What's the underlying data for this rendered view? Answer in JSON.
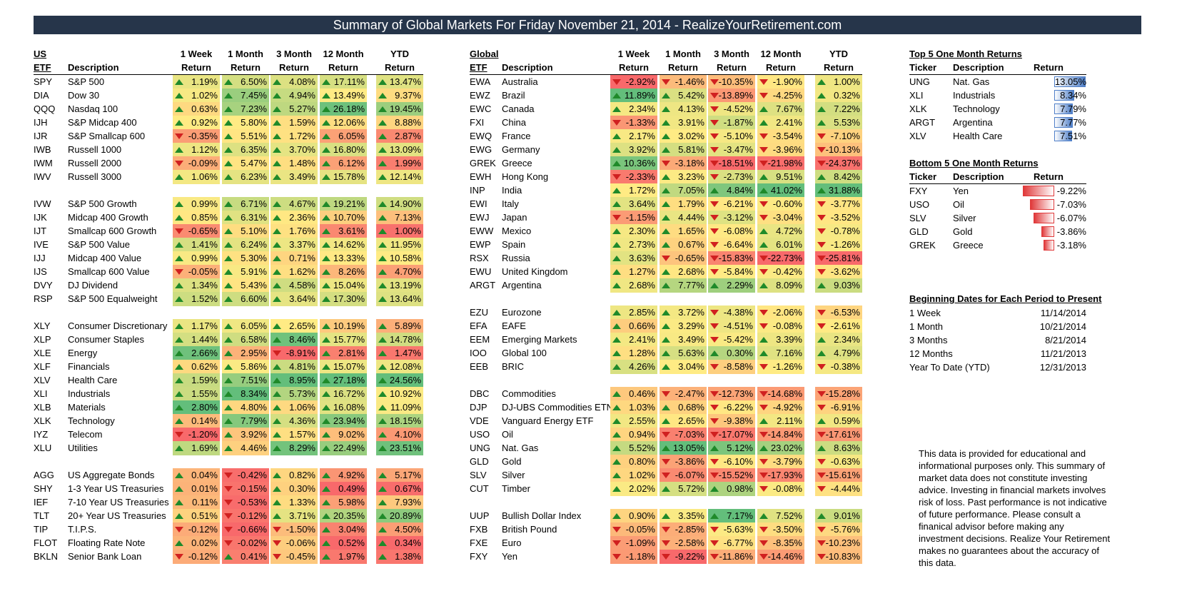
{
  "title": "Summary of Global Markets For Friday November 21, 2014 - RealizeYourRetirement.com",
  "us": {
    "group_label": "US",
    "col_etf": "ETF",
    "col_desc": "Description",
    "periods": [
      "1 Week",
      "1 Month",
      "3 Month",
      "12 Month",
      "YTD"
    ],
    "return_label": "Return",
    "rows": [
      {
        "t": "SPY",
        "d": "S&P 500",
        "v": [
          1.19,
          6.5,
          4.08,
          17.11,
          13.47
        ]
      },
      {
        "t": "DIA",
        "d": "Dow 30",
        "v": [
          1.02,
          7.45,
          4.94,
          13.49,
          9.37
        ]
      },
      {
        "t": "QQQ",
        "d": "Nasdaq 100",
        "v": [
          0.63,
          7.23,
          5.27,
          26.18,
          19.45
        ]
      },
      {
        "t": "IJH",
        "d": "S&P Midcap 400",
        "v": [
          0.92,
          5.8,
          1.59,
          12.06,
          8.88
        ]
      },
      {
        "t": "IJR",
        "d": "S&P Smallcap 600",
        "v": [
          -0.35,
          5.51,
          1.72,
          6.05,
          2.87
        ]
      },
      {
        "t": "IWB",
        "d": "Russell 1000",
        "v": [
          1.12,
          6.35,
          3.7,
          16.8,
          13.09
        ]
      },
      {
        "t": "IWM",
        "d": "Russell 2000",
        "v": [
          -0.09,
          5.47,
          1.48,
          6.12,
          1.99
        ]
      },
      {
        "t": "IWV",
        "d": "Russell 3000",
        "v": [
          1.06,
          6.23,
          3.49,
          15.78,
          12.14
        ]
      },
      null,
      {
        "t": "IVW",
        "d": "S&P 500 Growth",
        "v": [
          0.99,
          6.71,
          4.67,
          19.21,
          14.9
        ]
      },
      {
        "t": "IJK",
        "d": "Midcap 400 Growth",
        "v": [
          0.85,
          6.31,
          2.36,
          10.7,
          7.13
        ]
      },
      {
        "t": "IJT",
        "d": "Smallcap 600 Growth",
        "v": [
          -0.65,
          5.1,
          1.76,
          3.61,
          1.0
        ]
      },
      {
        "t": "IVE",
        "d": "S&P 500 Value",
        "v": [
          1.41,
          6.24,
          3.37,
          14.62,
          11.95
        ]
      },
      {
        "t": "IJJ",
        "d": "Midcap 400 Value",
        "v": [
          0.99,
          5.3,
          0.71,
          13.33,
          10.58
        ]
      },
      {
        "t": "IJS",
        "d": "Smallcap 600 Value",
        "v": [
          -0.05,
          5.91,
          1.62,
          8.26,
          4.7
        ]
      },
      {
        "t": "DVY",
        "d": "DJ Dividend",
        "v": [
          1.34,
          5.43,
          4.58,
          15.04,
          13.19
        ]
      },
      {
        "t": "RSP",
        "d": "S&P 500 Equalweight",
        "v": [
          1.52,
          6.6,
          3.64,
          17.3,
          13.64
        ]
      },
      null,
      {
        "t": "XLY",
        "d": "Consumer Discretionary",
        "v": [
          1.17,
          6.05,
          2.65,
          10.19,
          5.89
        ]
      },
      {
        "t": "XLP",
        "d": "Consumer Staples",
        "v": [
          1.44,
          6.58,
          8.46,
          15.77,
          14.78
        ]
      },
      {
        "t": "XLE",
        "d": "Energy",
        "v": [
          2.66,
          2.95,
          -8.91,
          2.81,
          1.47
        ]
      },
      {
        "t": "XLF",
        "d": "Financials",
        "v": [
          0.62,
          5.86,
          4.81,
          15.07,
          12.08
        ]
      },
      {
        "t": "XLV",
        "d": "Health Care",
        "v": [
          1.59,
          7.51,
          8.95,
          27.18,
          24.56
        ]
      },
      {
        "t": "XLI",
        "d": "Industrials",
        "v": [
          1.55,
          8.34,
          5.73,
          16.72,
          10.92
        ]
      },
      {
        "t": "XLB",
        "d": "Materials",
        "v": [
          2.8,
          4.8,
          1.06,
          16.08,
          11.09
        ]
      },
      {
        "t": "XLK",
        "d": "Technology",
        "v": [
          0.14,
          7.79,
          4.36,
          23.94,
          18.15
        ]
      },
      {
        "t": "IYZ",
        "d": "Telecom",
        "v": [
          -1.2,
          3.92,
          1.57,
          9.02,
          4.1
        ]
      },
      {
        "t": "XLU",
        "d": "Utilities",
        "v": [
          1.69,
          4.46,
          8.29,
          22.49,
          23.51
        ]
      },
      null,
      {
        "t": "AGG",
        "d": "US Aggregate Bonds",
        "v": [
          0.04,
          -0.42,
          0.82,
          4.92,
          5.17
        ]
      },
      {
        "t": "SHY",
        "d": "1-3 Year US Treasuries",
        "v": [
          0.01,
          -0.15,
          0.3,
          0.49,
          0.67
        ]
      },
      {
        "t": "IEF",
        "d": "7-10 Year US Treasuries",
        "v": [
          0.11,
          -0.53,
          1.33,
          5.98,
          7.93
        ]
      },
      {
        "t": "TLT",
        "d": "20+ Year US Treasuries",
        "v": [
          0.51,
          -0.12,
          3.71,
          20.35,
          20.89
        ]
      },
      {
        "t": "TIP",
        "d": "T.I.P.S.",
        "v": [
          -0.12,
          -0.66,
          -1.5,
          3.04,
          4.5
        ]
      },
      {
        "t": "FLOT",
        "d": "Floating Rate Note",
        "v": [
          0.02,
          -0.02,
          -0.06,
          0.52,
          0.34
        ]
      },
      {
        "t": "BKLN",
        "d": "Senior Bank Loan",
        "v": [
          -0.12,
          0.41,
          -0.45,
          1.97,
          1.38
        ]
      }
    ]
  },
  "global": {
    "group_label": "Global",
    "col_etf": "ETF",
    "col_desc": "Description",
    "periods": [
      "1 Week",
      "1 Month",
      "3 Month",
      "12 Month",
      "YTD"
    ],
    "return_label": "Return",
    "rows": [
      {
        "t": "EWA",
        "d": "Australia",
        "v": [
          -2.92,
          -1.46,
          -10.35,
          -1.9,
          1.0
        ]
      },
      {
        "t": "EWZ",
        "d": "Brazil",
        "v": [
          11.89,
          5.42,
          -13.89,
          -4.25,
          0.32
        ]
      },
      {
        "t": "EWC",
        "d": "Canada",
        "v": [
          2.34,
          4.13,
          -4.52,
          7.67,
          7.22
        ]
      },
      {
        "t": "FXI",
        "d": "China",
        "v": [
          -1.33,
          3.91,
          -1.87,
          2.41,
          5.53
        ]
      },
      {
        "t": "EWQ",
        "d": "France",
        "v": [
          2.17,
          3.02,
          -5.1,
          -3.54,
          -7.1
        ]
      },
      {
        "t": "EWG",
        "d": "Germany",
        "v": [
          3.92,
          5.81,
          -3.47,
          -3.96,
          -10.13
        ]
      },
      {
        "t": "GREK",
        "d": "Greece",
        "v": [
          10.36,
          -3.18,
          -18.51,
          -21.98,
          -24.37
        ]
      },
      {
        "t": "EWH",
        "d": "Hong Kong",
        "v": [
          -2.33,
          3.23,
          -2.73,
          9.51,
          8.42
        ]
      },
      {
        "t": "INP",
        "d": "India",
        "v": [
          1.72,
          7.05,
          4.84,
          41.02,
          31.88
        ]
      },
      {
        "t": "EWI",
        "d": "Italy",
        "v": [
          3.64,
          1.79,
          -6.21,
          -0.6,
          -3.77
        ]
      },
      {
        "t": "EWJ",
        "d": "Japan",
        "v": [
          -1.15,
          4.44,
          -3.12,
          -3.04,
          -3.52
        ]
      },
      {
        "t": "EWW",
        "d": "Mexico",
        "v": [
          2.3,
          1.65,
          -6.08,
          4.72,
          -0.78
        ]
      },
      {
        "t": "EWP",
        "d": "Spain",
        "v": [
          2.73,
          0.67,
          -6.64,
          6.01,
          -1.26
        ]
      },
      {
        "t": "RSX",
        "d": "Russia",
        "v": [
          3.63,
          -0.65,
          -15.83,
          -22.73,
          -25.81
        ]
      },
      {
        "t": "EWU",
        "d": "United Kingdom",
        "v": [
          1.27,
          2.68,
          -5.84,
          -0.42,
          -3.62
        ]
      },
      {
        "t": "ARGT",
        "d": "Argentina",
        "v": [
          2.68,
          7.77,
          2.29,
          8.09,
          9.03
        ]
      },
      null,
      {
        "t": "EZU",
        "d": "Eurozone",
        "v": [
          2.85,
          3.72,
          -4.38,
          -2.06,
          -6.53
        ]
      },
      {
        "t": "EFA",
        "d": "EAFE",
        "v": [
          0.66,
          3.29,
          -4.51,
          -0.08,
          -2.61
        ]
      },
      {
        "t": "EEM",
        "d": "Emerging Markets",
        "v": [
          2.41,
          3.49,
          -5.42,
          3.39,
          2.34
        ]
      },
      {
        "t": "IOO",
        "d": "Global 100",
        "v": [
          1.28,
          5.63,
          0.3,
          7.16,
          4.79
        ]
      },
      {
        "t": "EEB",
        "d": "BRIC",
        "v": [
          4.26,
          3.04,
          -8.58,
          -1.26,
          -0.38
        ]
      },
      null,
      {
        "t": "DBC",
        "d": "Commodities",
        "v": [
          0.46,
          -2.47,
          -12.73,
          -14.68,
          -15.28
        ]
      },
      {
        "t": "DJP",
        "d": "DJ-UBS Commodities ETN",
        "v": [
          1.03,
          0.68,
          -6.22,
          -4.92,
          -6.91
        ]
      },
      {
        "t": "VDE",
        "d": "Vanguard Energy ETF",
        "v": [
          2.55,
          2.65,
          -9.38,
          2.11,
          0.59
        ]
      },
      {
        "t": "USO",
        "d": "Oil",
        "v": [
          0.94,
          -7.03,
          -17.07,
          -14.84,
          -17.61
        ]
      },
      {
        "t": "UNG",
        "d": "Nat. Gas",
        "v": [
          5.52,
          13.05,
          5.12,
          23.02,
          8.63
        ]
      },
      {
        "t": "GLD",
        "d": "Gold",
        "v": [
          0.8,
          -3.86,
          -6.1,
          -3.79,
          -0.63
        ]
      },
      {
        "t": "SLV",
        "d": "Silver",
        "v": [
          1.02,
          -6.07,
          -15.52,
          -17.93,
          -15.61
        ]
      },
      {
        "t": "CUT",
        "d": "Timber",
        "v": [
          2.02,
          5.72,
          0.98,
          -0.08,
          -4.44
        ]
      },
      null,
      {
        "t": "UUP",
        "d": "Bullish Dollar Index",
        "v": [
          0.9,
          3.35,
          7.17,
          7.52,
          9.01
        ]
      },
      {
        "t": "FXB",
        "d": "British Pound",
        "v": [
          -0.05,
          -2.85,
          -5.63,
          -3.5,
          -5.76
        ]
      },
      {
        "t": "FXE",
        "d": "Euro",
        "v": [
          -1.09,
          -2.58,
          -6.77,
          -8.35,
          -10.23
        ]
      },
      {
        "t": "FXY",
        "d": "Yen",
        "v": [
          -1.18,
          -9.22,
          -11.86,
          -14.46,
          -10.83
        ]
      }
    ]
  },
  "top5": {
    "heading": "Top 5 One Month Returns",
    "cols": [
      "Ticker",
      "Description",
      "Return"
    ],
    "rows": [
      {
        "t": "UNG",
        "d": "Nat. Gas",
        "v": 13.05
      },
      {
        "t": "XLI",
        "d": "Industrials",
        "v": 8.34
      },
      {
        "t": "XLK",
        "d": "Technology",
        "v": 7.79
      },
      {
        "t": "ARGT",
        "d": "Argentina",
        "v": 7.77
      },
      {
        "t": "XLV",
        "d": "Health Care",
        "v": 7.51
      }
    ]
  },
  "bottom5": {
    "heading": "Bottom 5 One Month Returns",
    "cols": [
      "Ticker",
      "Description",
      "Return"
    ],
    "rows": [
      {
        "t": "FXY",
        "d": "Yen",
        "v": -9.22
      },
      {
        "t": "USO",
        "d": "Oil",
        "v": -7.03
      },
      {
        "t": "SLV",
        "d": "Silver",
        "v": -6.07
      },
      {
        "t": "GLD",
        "d": "Gold",
        "v": -3.86
      },
      {
        "t": "GREK",
        "d": "Greece",
        "v": -3.18
      }
    ]
  },
  "dates": {
    "heading": "Beginning Dates for Each Period to Present",
    "rows": [
      {
        "label": "1 Week",
        "date": "11/14/2014"
      },
      {
        "label": "1 Month",
        "date": "10/21/2014"
      },
      {
        "label": "3 Months",
        "date": "8/21/2014"
      },
      {
        "label": "12 Months",
        "date": "11/21/2013"
      },
      {
        "label": "Year To Date (YTD)",
        "date": "12/31/2013"
      }
    ]
  },
  "disclaimer": "This data is provided for educational and informational purposes only. This summary of market data does not constitute investing advice. Investing in financial markets involves risk of loss.  Past performance is not indicative of future performance. Please consult a finanical advisor before making any investment decisions. Realize Your Retirement makes no guarantees about the accuracy of this data.",
  "colors": {
    "title_bg": "#26354a",
    "scale_low": "#f8696b",
    "scale_mid": "#ffeb84",
    "scale_high": "#63be7b",
    "arrow_up": "#1f8a2a",
    "arrow_down": "#d02020",
    "databar_pos": "#4f7fc8",
    "databar_neg": "#e0393a"
  },
  "icons": {
    "up": "triangle-up-icon",
    "down": "triangle-down-icon"
  }
}
